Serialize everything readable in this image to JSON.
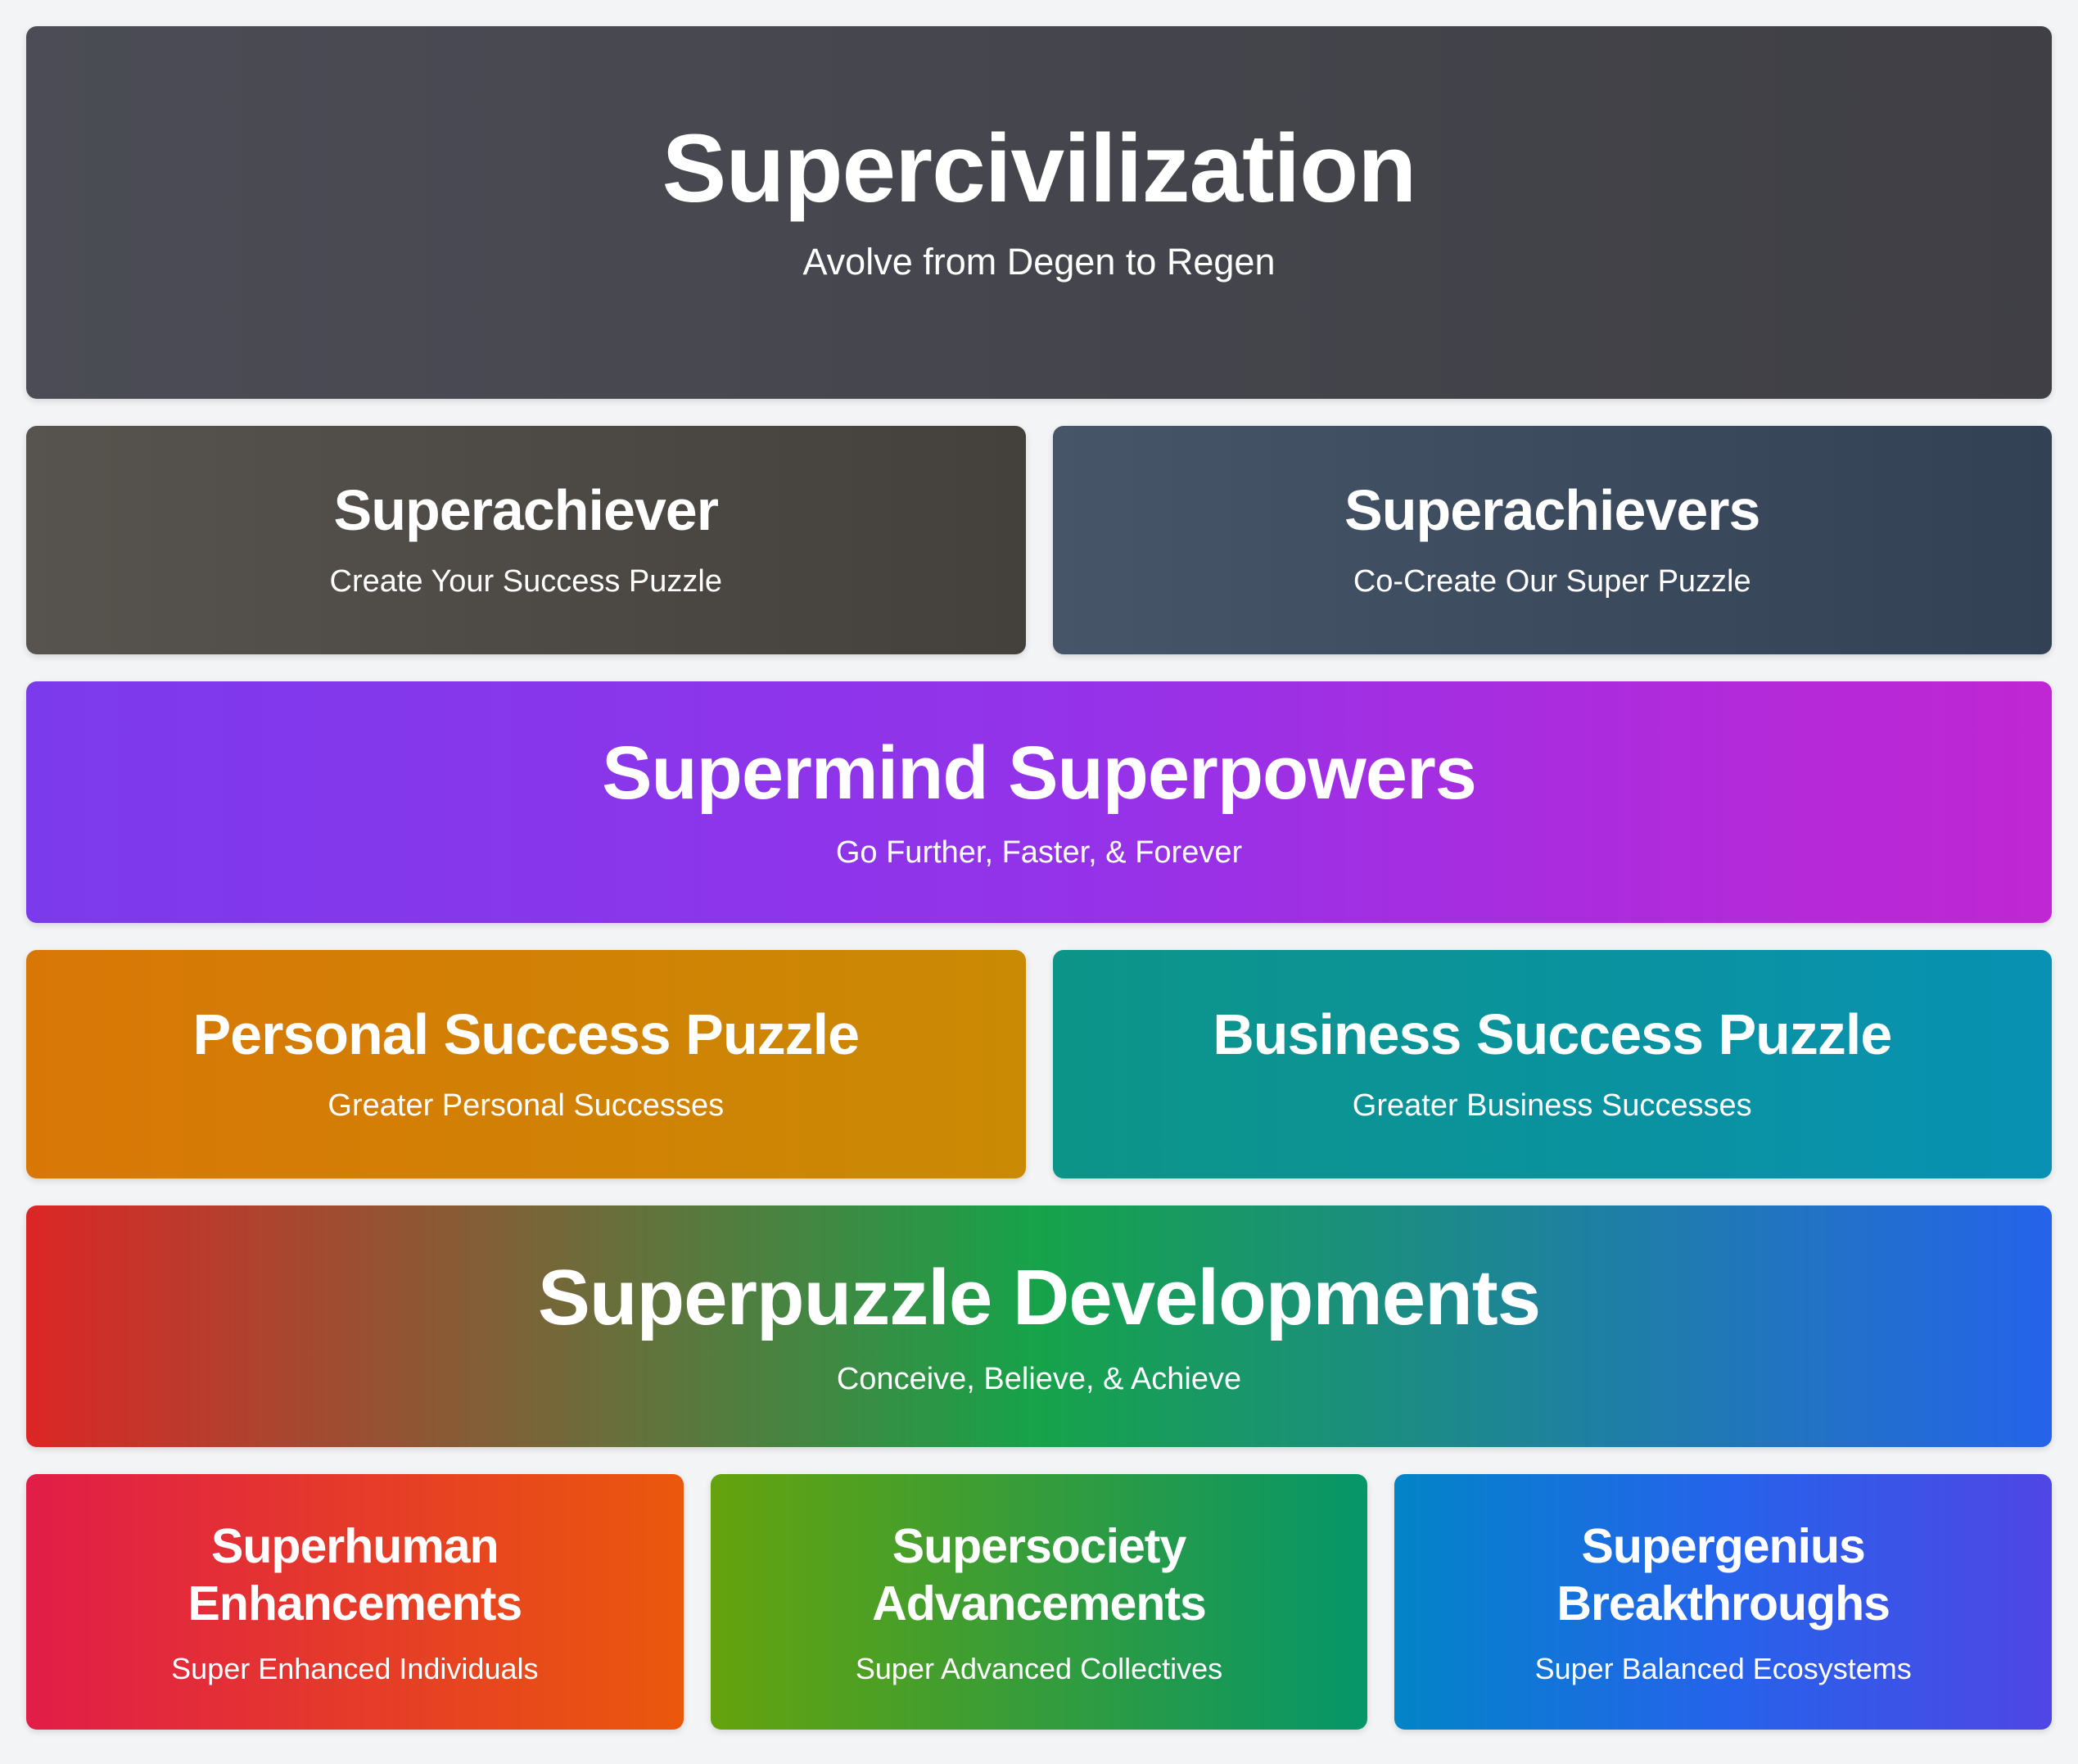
{
  "cards": [
    {
      "title": "Supercivilization",
      "subtitle": "Avolve from Degen to Regen",
      "gradient": [
        "#4b4c55",
        "#3f3f45"
      ]
    },
    {
      "title": "Superachiever",
      "subtitle": "Create Your Success Puzzle",
      "gradient": [
        "#57534e",
        "#44403c"
      ]
    },
    {
      "title": "Superachievers",
      "subtitle": "Co-Create Our Super Puzzle",
      "gradient": [
        "#475569",
        "#334155"
      ]
    },
    {
      "title": "Supermind Superpowers",
      "subtitle": "Go Further, Faster, & Forever",
      "gradient": [
        "#7c3aed",
        "#9333ea",
        "#c026d3"
      ]
    },
    {
      "title": "Personal Success Puzzle",
      "subtitle": "Greater Personal Successes",
      "gradient": [
        "#d97706",
        "#ca8a04"
      ]
    },
    {
      "title": "Business Success Puzzle",
      "subtitle": "Greater Business Successes",
      "gradient": [
        "#0d9488",
        "#0891b2"
      ]
    },
    {
      "title": "Superpuzzle Developments",
      "subtitle": "Conceive, Believe, & Achieve",
      "gradient": [
        "#dc2626",
        "#16a34a",
        "#2563eb"
      ]
    },
    {
      "title": "Superhuman Enhancements",
      "subtitle": "Super Enhanced Individuals",
      "gradient": [
        "#e11d48",
        "#ea580c"
      ]
    },
    {
      "title": "Supersociety Advancements",
      "subtitle": "Super Advanced Collectives",
      "gradient": [
        "#65a30d",
        "#059669"
      ]
    },
    {
      "title": "Supergenius Breakthroughs",
      "subtitle": "Super Balanced Ecosystems",
      "gradient": [
        "#0284c7",
        "#2563eb",
        "#4f46e5"
      ]
    }
  ]
}
